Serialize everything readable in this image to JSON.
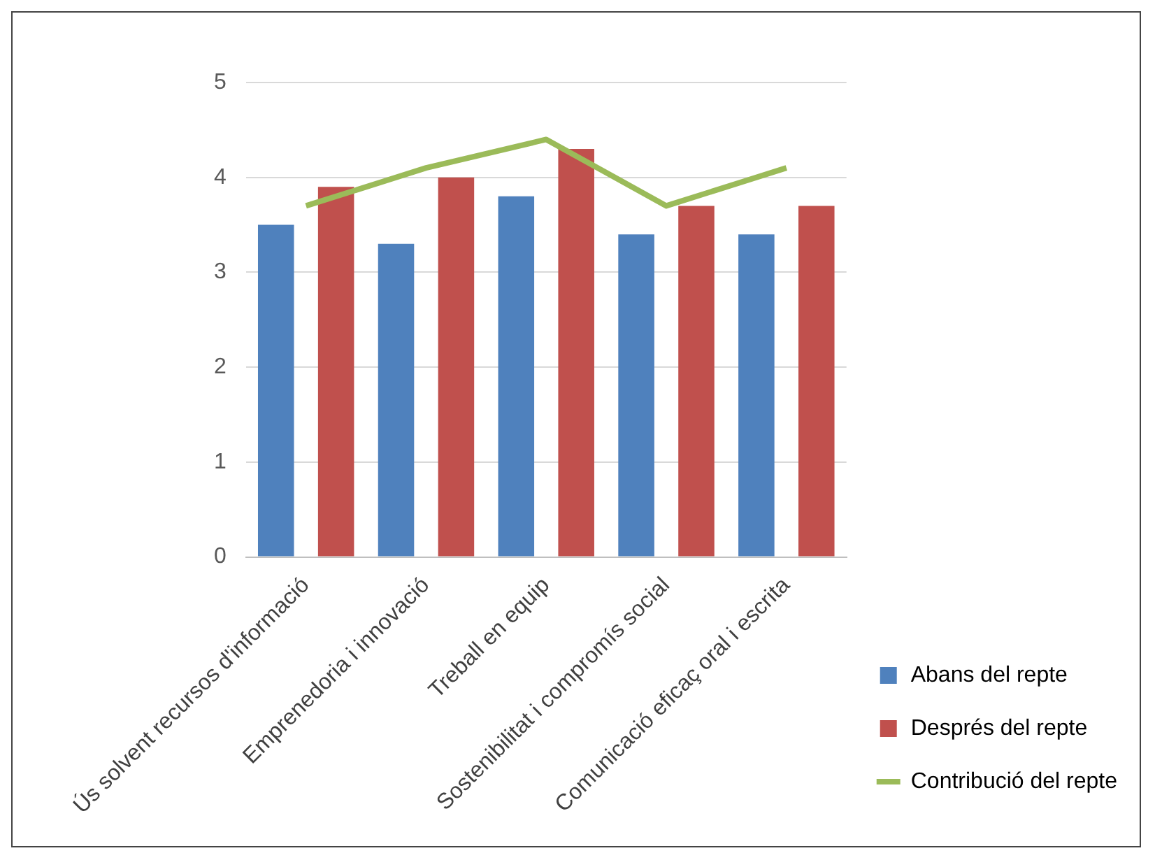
{
  "chart_data": {
    "type": "bar",
    "categories": [
      "Ús solvent recursos d'informació",
      "Emprenedoria i innovació",
      "Treball en equip",
      "Sostenibilitat i compromís social",
      "Comunicació eficaç oral i escrita"
    ],
    "series": [
      {
        "name": "Abans del repte",
        "color": "#4f81bd",
        "values": [
          3.5,
          3.3,
          3.8,
          3.4,
          3.4
        ]
      },
      {
        "name": "Després del repte",
        "color": "#c0504d",
        "values": [
          3.9,
          4.0,
          4.3,
          3.7,
          3.7
        ]
      },
      {
        "name": "Contribució del repte",
        "type": "line",
        "color": "#9bbb59",
        "values": [
          3.7,
          4.1,
          4.4,
          3.7,
          4.1
        ]
      }
    ],
    "ylim": [
      0,
      5
    ],
    "yticks": [
      0,
      1,
      2,
      3,
      4,
      5
    ],
    "grid": "y",
    "legend": "bottom right",
    "marker": "none",
    "line_style": "solid"
  }
}
